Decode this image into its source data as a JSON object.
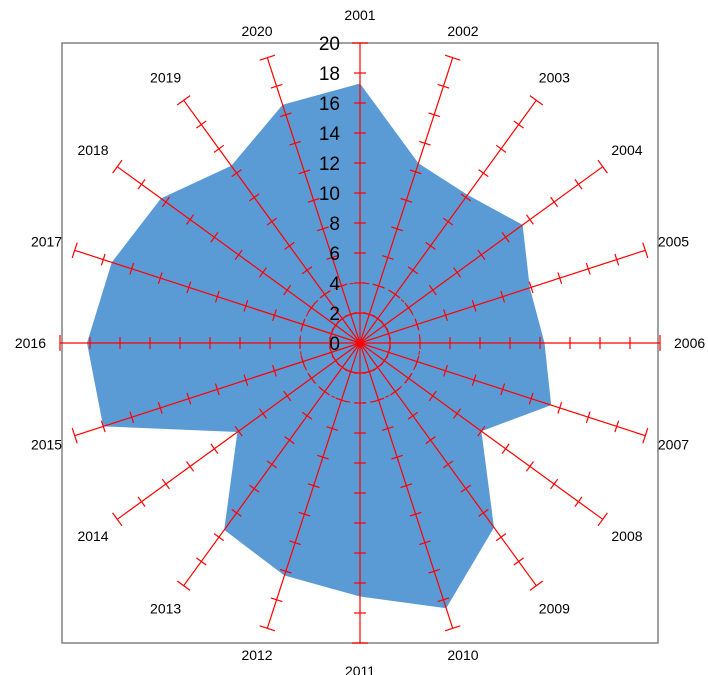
{
  "chart_data": {
    "type": "radar",
    "style": "filled",
    "categories": [
      "2001",
      "2002",
      "2003",
      "2004",
      "2005",
      "2006",
      "2007",
      "2008",
      "2009",
      "2010",
      "2011",
      "2012",
      "2013",
      "2014",
      "2015",
      "2016",
      "2017",
      "2018",
      "2019",
      "2020"
    ],
    "series": [
      {
        "values": [
          17.3,
          12.6,
          12.2,
          13.4,
          11.9,
          12.3,
          13.4,
          10.0,
          15.2,
          18.6,
          16.9,
          16.3,
          15.4,
          10.1,
          18.0,
          18.2,
          17.4,
          16.4,
          14.6,
          16.7
        ]
      }
    ],
    "rlim": [
      0,
      20
    ],
    "r_ticks": [
      0,
      2,
      4,
      6,
      8,
      10,
      12,
      14,
      16,
      18,
      20
    ],
    "grid": false,
    "legend": "none",
    "colors": {
      "fill": "#5b9bd5",
      "axis": "#ff0000",
      "frame": "#808080"
    }
  }
}
